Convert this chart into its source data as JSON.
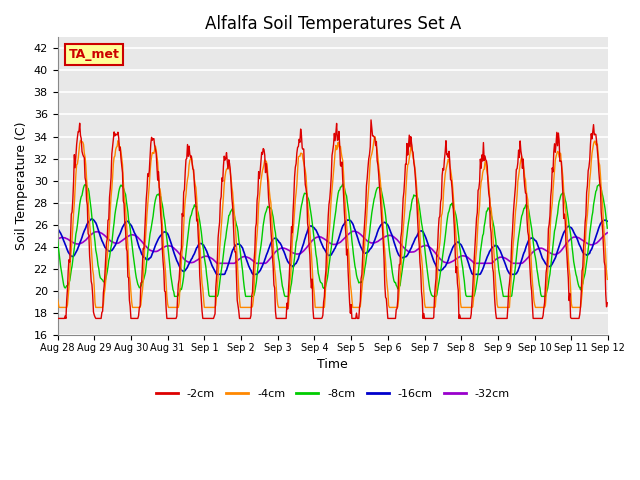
{
  "title": "Alfalfa Soil Temperatures Set A",
  "xlabel": "Time",
  "ylabel": "Soil Temperature (C)",
  "ylim": [
    16,
    43
  ],
  "annotation": "TA_met",
  "annotation_color": "#cc0000",
  "annotation_bg": "#ffff99",
  "background_color": "#e8e8e8",
  "grid_color": "white",
  "series_colors": [
    "#dd0000",
    "#ff8800",
    "#00cc00",
    "#0000cc",
    "#9900cc"
  ],
  "series_labels": [
    "-2cm",
    "-4cm",
    "-8cm",
    "-16cm",
    "-32cm"
  ],
  "tick_labels": [
    "Aug 28",
    "Aug 29",
    "Aug 30",
    "Aug 31",
    "Sep 1",
    "Sep 2",
    "Sep 3",
    "Sep 4",
    "Sep 5",
    "Sep 6",
    "Sep 7",
    "Sep 8",
    "Sep 9",
    "Sep 10",
    "Sep 11",
    "Sep 12"
  ],
  "n_days": 15
}
